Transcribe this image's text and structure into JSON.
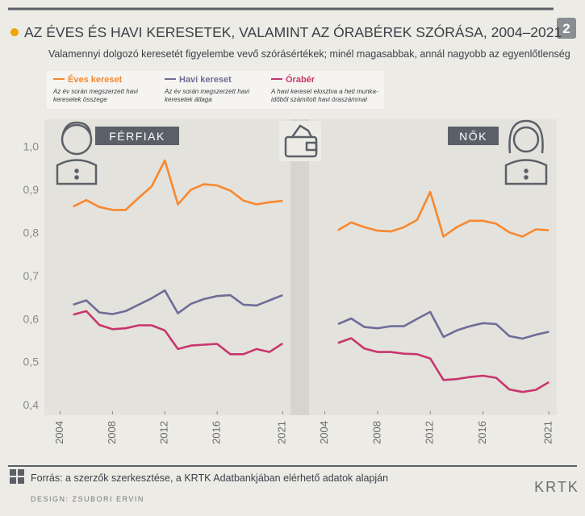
{
  "header": {
    "title": "AZ ÉVES ÉS HAVI KERESETEK, VALAMINT AZ ÓRABÉREK SZÓRÁSA, 2004–2021",
    "subtitle": "Valamennyi dolgozó keresetét figyelembe vevő szórásértékek; minél magasabbak, annál nagyobb az egyenlőtlenség",
    "badge": "2"
  },
  "chart_data": [
    {
      "type": "line",
      "title": "FÉRFIAK",
      "x": [
        2005,
        2006,
        2007,
        2008,
        2009,
        2010,
        2011,
        2012,
        2013,
        2014,
        2015,
        2016,
        2017,
        2018,
        2019,
        2020,
        2021
      ],
      "xlim": [
        2002.8,
        2021.6
      ],
      "xticks": [
        2004,
        2008,
        2012,
        2016,
        2021
      ],
      "ylim": [
        0.38,
        1.06
      ],
      "yticks": [
        {
          "value": 1.0,
          "label": "1,0"
        },
        {
          "value": 0.9,
          "label": "0,9"
        },
        {
          "value": 0.8,
          "label": "0,8"
        },
        {
          "value": 0.7,
          "label": "0,7"
        },
        {
          "value": 0.6,
          "label": "0,6"
        },
        {
          "value": 0.5,
          "label": "0,5"
        },
        {
          "value": 0.4,
          "label": "0,4"
        }
      ],
      "series": [
        {
          "name": "Éves kereset",
          "description": [
            "Az év során megszerzett havi",
            "keresetek összege"
          ],
          "color": "#f7882f",
          "values": [
            0.863,
            0.878,
            0.862,
            0.855,
            0.855,
            0.883,
            0.91,
            0.97,
            0.868,
            0.902,
            0.915,
            0.912,
            0.9,
            0.877,
            0.868,
            0.873,
            0.876
          ]
        },
        {
          "name": "Havi kereset",
          "description": [
            "Az év során megszerzett havi",
            "keresetek átlaga"
          ],
          "color": "#6e6d99",
          "values": [
            0.635,
            0.645,
            0.617,
            0.613,
            0.62,
            0.635,
            0.65,
            0.668,
            0.615,
            0.637,
            0.648,
            0.655,
            0.657,
            0.635,
            0.633,
            0.645,
            0.657
          ]
        },
        {
          "name": "Órabér",
          "description": [
            "A havi kereset elosztva a heti munka-",
            "időből számított havi óraszámmal"
          ],
          "color": "#c8356f",
          "values": [
            0.612,
            0.62,
            0.588,
            0.578,
            0.58,
            0.587,
            0.587,
            0.575,
            0.532,
            0.54,
            0.542,
            0.544,
            0.52,
            0.52,
            0.532,
            0.525,
            0.545
          ]
        }
      ]
    },
    {
      "type": "line",
      "title": "NŐK",
      "x": [
        2005,
        2006,
        2007,
        2008,
        2009,
        2010,
        2011,
        2012,
        2013,
        2014,
        2015,
        2016,
        2017,
        2018,
        2019,
        2020,
        2021
      ],
      "xlim": [
        2002.8,
        2021.6
      ],
      "xticks": [
        2004,
        2008,
        2012,
        2016,
        2021
      ],
      "ylim": [
        0.38,
        1.06
      ],
      "series": [
        {
          "color": "#f7882f",
          "values": [
            0.808,
            0.826,
            0.815,
            0.807,
            0.805,
            0.815,
            0.832,
            0.897,
            0.793,
            0.815,
            0.83,
            0.83,
            0.823,
            0.803,
            0.793,
            0.81,
            0.808
          ]
        },
        {
          "color": "#6e6d99",
          "values": [
            0.59,
            0.603,
            0.583,
            0.58,
            0.585,
            0.585,
            0.602,
            0.618,
            0.56,
            0.575,
            0.585,
            0.592,
            0.59,
            0.562,
            0.556,
            0.565,
            0.572
          ]
        },
        {
          "color": "#c8356f",
          "values": [
            0.546,
            0.557,
            0.533,
            0.525,
            0.525,
            0.521,
            0.52,
            0.51,
            0.46,
            0.462,
            0.467,
            0.47,
            0.465,
            0.438,
            0.432,
            0.437,
            0.455
          ]
        }
      ]
    }
  ],
  "footer": {
    "source": "Forrás: a szerzők szerkesztése, a KRTK Adatbankjában elérhető adatok alapján",
    "design": "DESIGN: ZSUBORI ERVIN",
    "logo": "KRTK"
  }
}
